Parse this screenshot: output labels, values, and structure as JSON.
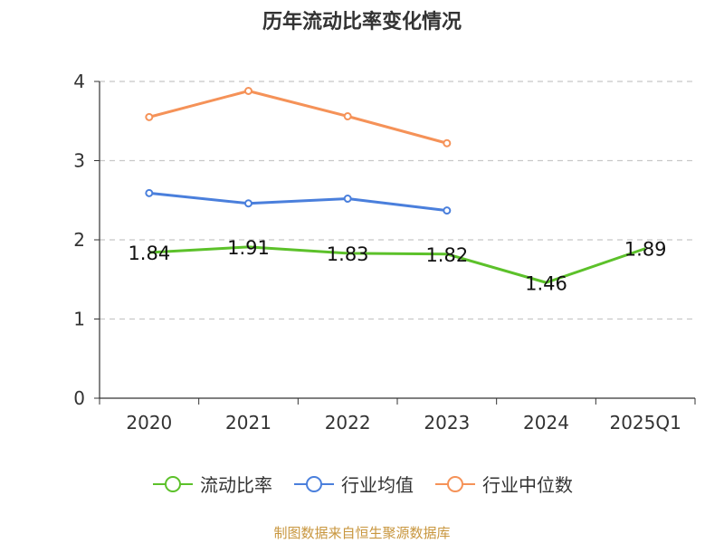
{
  "chart_data": {
    "type": "line",
    "title": "历年流动比率变化情况",
    "categories": [
      "2020",
      "2021",
      "2022",
      "2023",
      "2024",
      "2025Q1"
    ],
    "ylim": [
      0,
      4
    ],
    "yticks": [
      "0",
      "1",
      "2",
      "3",
      "4"
    ],
    "grid": true,
    "legend_position": "bottom",
    "series": [
      {
        "name": "流动比率",
        "color": "#5cc12a",
        "values": [
          1.84,
          1.91,
          1.83,
          1.82,
          1.46,
          1.89
        ],
        "labels": [
          "1.84",
          "1.91",
          "1.83",
          "1.82",
          "1.46",
          "1.89"
        ]
      },
      {
        "name": "行业均值",
        "color": "#4a7fdc",
        "values": [
          2.59,
          2.46,
          2.52,
          2.37,
          null,
          null
        ]
      },
      {
        "name": "行业中位数",
        "color": "#f59258",
        "values": [
          3.55,
          3.88,
          3.56,
          3.22,
          null,
          null
        ]
      }
    ],
    "source": "制图数据来自恒生聚源数据库"
  }
}
